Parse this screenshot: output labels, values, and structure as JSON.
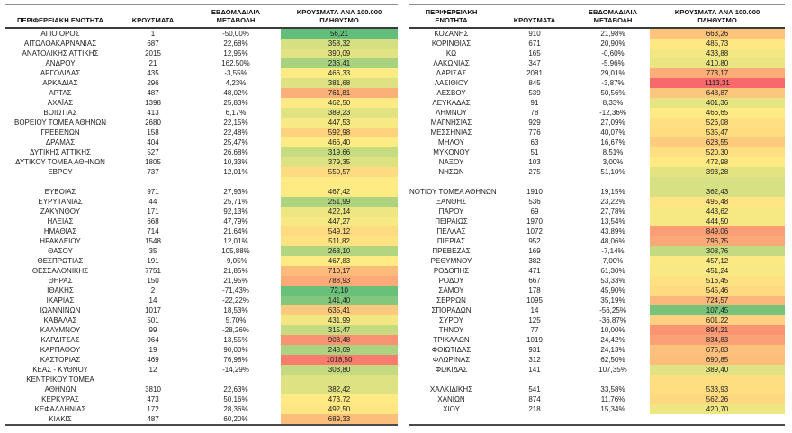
{
  "heatmap": {
    "green": "#63BE7B",
    "yellow": "#FFEB84",
    "red": "#F8696B"
  },
  "chart_data": [
    {
      "type": "table",
      "section": "left",
      "headers": [
        [
          "ΠΕΡΙΦΕΡΕΙΑΚΗ ΕΝΟΤΗΤΑ"
        ],
        [
          "ΚΡΟΥΣΜΑΤΑ"
        ],
        [
          "ΕΒΔΟΜΑΔΙΑΙΑ",
          "ΜΕΤΑΒΟΛΗ"
        ],
        [
          "ΚΡΟΥΣΜΑΤΑ ΑΝΑ 100.000",
          "ΠΛΗΘΥΣΜΟ"
        ]
      ],
      "rows": [
        [
          "ΑΓΙΟ ΟΡΟΣ",
          "1",
          "-50,00%",
          "56,21"
        ],
        [
          "ΑΙΤΩΛΟΑΚΑΡΝΑΝΙΑΣ",
          "687",
          "22,68%",
          "358,32"
        ],
        [
          "ΑΝΑΤΟΛΙΚΗΣ ΑΤΤΙΚΗΣ",
          "2015",
          "12,95%",
          "390,09"
        ],
        [
          "ΑΝΔΡΟΥ",
          "21",
          "162,50%",
          "236,41"
        ],
        [
          "ΑΡΓΟΛΙΔΑΣ",
          "435",
          "-3,55%",
          "466,33"
        ],
        [
          "ΑΡΚΑΔΙΑΣ",
          "296",
          "4,23%",
          "381,68"
        ],
        [
          "ΑΡΤΑΣ",
          "487",
          "48,02%",
          "761,81"
        ],
        [
          "ΑΧΑΪΑΣ",
          "1398",
          "25,83%",
          "462,50"
        ],
        [
          "ΒΟΙΩΤΙΑΣ",
          "413",
          "6,17%",
          "389,23"
        ],
        [
          "ΒΟΡΕΙΟΥ ΤΟΜΕΑ ΑΘΗΝΩΝ",
          "2680",
          "22,15%",
          "447,53"
        ],
        [
          "ΓΡΕΒΕΝΩΝ",
          "158",
          "22,48%",
          "592,98"
        ],
        [
          "ΔΡΑΜΑΣ",
          "404",
          "25,47%",
          "466,40"
        ],
        [
          "ΔΥΤΙΚΗΣ ΑΤΤΙΚΗΣ",
          "527",
          "26,68%",
          "319,66"
        ],
        [
          "ΔΥΤΙΚΟΥ ΤΟΜΕΑ ΑΘΗΝΩΝ",
          "1805",
          "10,33%",
          "379,35"
        ],
        [
          "ΕΒΡΟΥ",
          "737",
          "12,01%",
          "550,57"
        ],
        [
          "",
          "",
          "",
          "",
          467.42
        ],
        [
          "ΕΥΒΟΙΑΣ",
          "971",
          "27,93%",
          "467,42"
        ],
        [
          "ΕΥΡΥΤΑΝΙΑΣ",
          "44",
          "25,71%",
          "251,99"
        ],
        [
          "ΖΑΚΥΝΘΟΥ",
          "171",
          "92,13%",
          "422,14"
        ],
        [
          "ΗΛΕΙΑΣ",
          "668",
          "47,79%",
          "447,27"
        ],
        [
          "ΗΜΑΘΙΑΣ",
          "714",
          "21,64%",
          "549,12"
        ],
        [
          "ΗΡΑΚΛΕΙΟΥ",
          "1548",
          "12,01%",
          "511,82"
        ],
        [
          "ΘΑΣΟΥ",
          "35",
          "105,88%",
          "268,10"
        ],
        [
          "ΘΕΣΠΡΩΤΙΑΣ",
          "191",
          "-9,05%",
          "467,83"
        ],
        [
          "ΘΕΣΣΑΛΟΝΙΚΗΣ",
          "7751",
          "21,85%",
          "710,17"
        ],
        [
          "ΘΗΡΑΣ",
          "150",
          "21,95%",
          "788,93"
        ],
        [
          "ΙΘΑΚΗΣ",
          "2",
          "-71,43%",
          "72,10"
        ],
        [
          "ΙΚΑΡΙΑΣ",
          "14",
          "-22,22%",
          "141,40"
        ],
        [
          "ΙΩΑΝΝΙΝΩΝ",
          "1017",
          "18,53%",
          "635,41"
        ],
        [
          "ΚΑΒΑΛΑΣ",
          "501",
          "5,70%",
          "431,99"
        ],
        [
          "ΚΑΛΥΜΝΟΥ",
          "99",
          "-28,26%",
          "315,47"
        ],
        [
          "ΚΑΡΔΙΤΣΑΣ",
          "964",
          "13,55%",
          "903,48"
        ],
        [
          "ΚΑΡΠΑΘΟΥ",
          "19",
          "90,00%",
          "248,69"
        ],
        [
          "ΚΑΣΤΟΡΙΑΣ",
          "469",
          "76,98%",
          "1018,50"
        ],
        [
          "ΚΕΑΣ - ΚΥΘΝΟΥ",
          "12",
          "-14,29%",
          "308,80"
        ],
        [
          "ΚΕΝΤΡΙΚΟΥ ΤΟΜΕΑ",
          "",
          "",
          "",
          382.42
        ],
        [
          "ΑΘΗΝΩΝ",
          "3810",
          "22,63%",
          "382,42"
        ],
        [
          "ΚΕΡΚΥΡΑΣ",
          "473",
          "50,16%",
          "473,72"
        ],
        [
          "ΚΕΦΑΛΛΗΝΙΑΣ",
          "172",
          "28,36%",
          "492,50"
        ],
        [
          "ΚΙΛΚΙΣ",
          "487",
          "60,20%",
          "689,33"
        ]
      ]
    },
    {
      "type": "table",
      "section": "right",
      "headers": [
        [
          "ΠΕΡΙΦΕΡΕΙΑΚΗ",
          "ΕΝΟΤΗΤΑ"
        ],
        [
          "ΚΡΟΥΣΜΑΤΑ"
        ],
        [
          "ΕΒΔΟΜΑΔΙΑΙΑ",
          "ΜΕΤΑΒΟΛΗ"
        ],
        [
          "ΚΡΟΥΣΜΑΤΑ ΑΝΑ 100.000",
          "ΠΛΗΘΥΣΜΟ"
        ]
      ],
      "rows": [
        [
          "ΚΟΖΑΝΗΣ",
          "910",
          "21,98%",
          "663,26"
        ],
        [
          "ΚΟΡΙΝΘΙΑΣ",
          "671",
          "20,90%",
          "485,73"
        ],
        [
          "ΚΩ",
          "165",
          "-0,60%",
          "433,88"
        ],
        [
          "ΛΑΚΩΝΙΑΣ",
          "347",
          "-5,96%",
          "410,80"
        ],
        [
          "ΛΑΡΙΣΑΣ",
          "2081",
          "29,01%",
          "773,17"
        ],
        [
          "ΛΑΣΙΘΙΟΥ",
          "845",
          "-3,87%",
          "1113,31"
        ],
        [
          "ΛΕΣΒΟΥ",
          "539",
          "50,56%",
          "648,87"
        ],
        [
          "ΛΕΥΚΑΔΑΣ",
          "91",
          "8,33%",
          "401,36"
        ],
        [
          "ΛΗΜΝΟΥ",
          "78",
          "-12,36%",
          "466,65"
        ],
        [
          "ΜΑΓΝΗΣΙΑΣ",
          "929",
          "27,09%",
          "526,08"
        ],
        [
          "ΜΕΣΣΗΝΙΑΣ",
          "776",
          "40,07%",
          "535,47"
        ],
        [
          "ΜΗΛΟΥ",
          "63",
          "16,67%",
          "628,55"
        ],
        [
          "ΜΥΚΟΝΟΥ",
          "51",
          "8,51%",
          "520,30"
        ],
        [
          "ΝΑΞΟΥ",
          "103",
          "3,00%",
          "472,98"
        ],
        [
          "ΝΗΣΩΝ",
          "275",
          "51,10%",
          "393,28"
        ],
        [
          "",
          "",
          "",
          "",
          362.43
        ],
        [
          "ΝΟΤΙΟΥ ΤΟΜΕΑ ΑΘΗΝΩΝ",
          "1910",
          "19,15%",
          "362,43"
        ],
        [
          "ΞΑΝΘΗΣ",
          "536",
          "23,22%",
          "495,48"
        ],
        [
          "ΠΑΡΟΥ",
          "69",
          "27,78%",
          "443,62"
        ],
        [
          "ΠΕΙΡΑΙΩΣ",
          "1970",
          "13,54%",
          "444,50"
        ],
        [
          "ΠΕΛΛΑΣ",
          "1072",
          "43,89%",
          "849,06"
        ],
        [
          "ΠΙΕΡΙΑΣ",
          "952",
          "48,06%",
          "796,75"
        ],
        [
          "ΠΡΕΒΕΖΑΣ",
          "169",
          "-7,14%",
          "308,76"
        ],
        [
          "ΡΕΘΥΜΝΟΥ",
          "382",
          "7,00%",
          "457,12"
        ],
        [
          "ΡΟΔΟΠΗΣ",
          "471",
          "61,30%",
          "451,24"
        ],
        [
          "ΡΟΔΟΥ",
          "667",
          "53,33%",
          "516,45"
        ],
        [
          "ΣΑΜΟΥ",
          "178",
          "45,90%",
          "545,46"
        ],
        [
          "ΣΕΡΡΩΝ",
          "1095",
          "35,19%",
          "724,57"
        ],
        [
          "ΣΠΟΡΑΔΩΝ",
          "14",
          "-56,25%",
          "107,45"
        ],
        [
          "ΣΥΡΟΥ",
          "125",
          "-36,87%",
          "601,22"
        ],
        [
          "ΤΗΝΟΥ",
          "77",
          "10,00%",
          "894,21"
        ],
        [
          "ΤΡΙΚΑΛΩΝ",
          "1019",
          "24,42%",
          "834,83"
        ],
        [
          "ΦΘΙΩΤΙΔΑΣ",
          "931",
          "24,13%",
          "675,83"
        ],
        [
          "ΦΛΩΡΙΝΑΣ",
          "312",
          "62,50%",
          "690,85"
        ],
        [
          "ΦΩΚΙΔΑΣ",
          "141",
          "107,35%",
          "389,40"
        ],
        [
          "",
          "",
          "",
          "",
          533.93
        ],
        [
          "ΧΑΛΚΙΔΙΚΗΣ",
          "541",
          "33,58%",
          "533,93"
        ],
        [
          "ΧΑΝΙΩΝ",
          "874",
          "11,76%",
          "562,26"
        ],
        [
          "ΧΙΟΥ",
          "218",
          "15,34%",
          "420,70"
        ],
        [
          "",
          "",
          "",
          ""
        ]
      ]
    }
  ]
}
